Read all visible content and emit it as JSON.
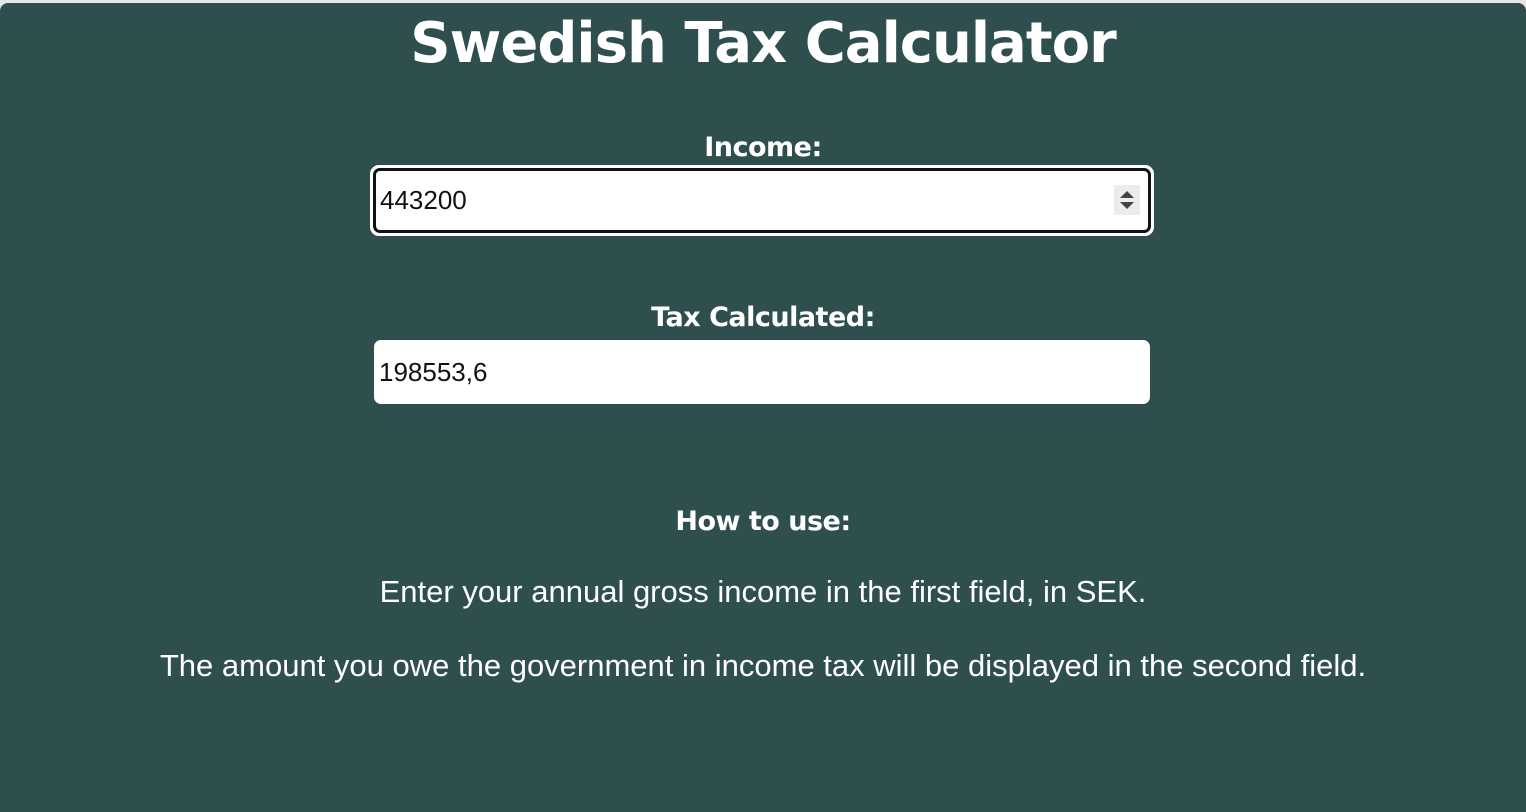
{
  "page": {
    "title": "Swedish Tax Calculator",
    "background_color": "#2f4f4f"
  },
  "income": {
    "label": "Income:",
    "value": "443200"
  },
  "tax": {
    "label": "Tax Calculated:",
    "value": "198553,6"
  },
  "howto": {
    "heading": "How to use:",
    "line1": "Enter your annual gross income in the first field, in SEK.",
    "line2": "The amount you owe the government in income tax will be displayed in the second field."
  },
  "icons": {
    "spinner": "number-spinner-icon"
  }
}
